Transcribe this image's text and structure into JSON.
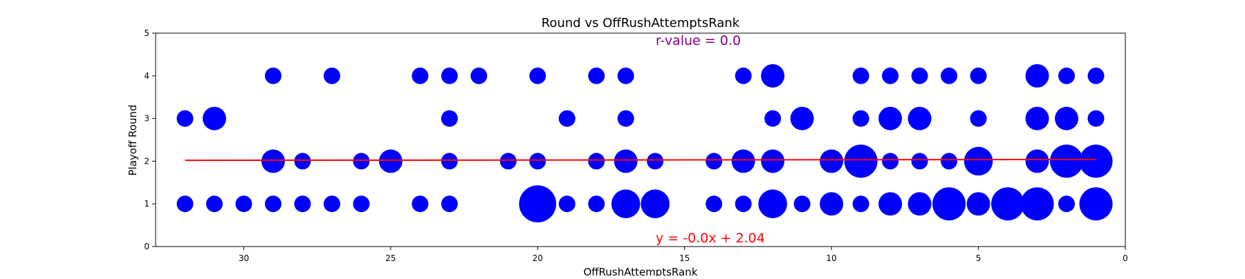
{
  "chart_data": {
    "type": "scatter",
    "title": "Round vs OffRushAttemptsRank",
    "xlabel": "OffRushAttemptsRank",
    "ylabel": "Playoff Round",
    "xlim": [
      33,
      0
    ],
    "ylim": [
      0,
      5
    ],
    "x_ticks": [
      30,
      25,
      20,
      15,
      10,
      5,
      0
    ],
    "y_ticks": [
      0,
      1,
      2,
      3,
      4,
      5
    ],
    "x_inverted": true,
    "grid": false,
    "point_color": "#0000ff",
    "point_size_encoding": "bubble size proportional to count of observations at (x, y)",
    "points": [
      {
        "x": 32,
        "y": 1,
        "size": 1
      },
      {
        "x": 31,
        "y": 1,
        "size": 1
      },
      {
        "x": 30,
        "y": 1,
        "size": 1
      },
      {
        "x": 29,
        "y": 1,
        "size": 1
      },
      {
        "x": 28,
        "y": 1,
        "size": 1
      },
      {
        "x": 27,
        "y": 1,
        "size": 1
      },
      {
        "x": 26,
        "y": 1,
        "size": 1
      },
      {
        "x": 24,
        "y": 1,
        "size": 1
      },
      {
        "x": 23,
        "y": 1,
        "size": 1
      },
      {
        "x": 20,
        "y": 1,
        "size": 5
      },
      {
        "x": 19,
        "y": 1,
        "size": 1
      },
      {
        "x": 18,
        "y": 1,
        "size": 1
      },
      {
        "x": 17,
        "y": 1,
        "size": 3
      },
      {
        "x": 16,
        "y": 1,
        "size": 3
      },
      {
        "x": 14,
        "y": 1,
        "size": 1
      },
      {
        "x": 13,
        "y": 1,
        "size": 1
      },
      {
        "x": 12,
        "y": 1,
        "size": 3
      },
      {
        "x": 11,
        "y": 1,
        "size": 1
      },
      {
        "x": 10,
        "y": 1,
        "size": 2
      },
      {
        "x": 9,
        "y": 1,
        "size": 1
      },
      {
        "x": 8,
        "y": 1,
        "size": 2
      },
      {
        "x": 7,
        "y": 1,
        "size": 2
      },
      {
        "x": 6,
        "y": 1,
        "size": 4
      },
      {
        "x": 5,
        "y": 1,
        "size": 2
      },
      {
        "x": 4,
        "y": 1,
        "size": 4
      },
      {
        "x": 3,
        "y": 1,
        "size": 4
      },
      {
        "x": 2,
        "y": 1,
        "size": 1
      },
      {
        "x": 1,
        "y": 1,
        "size": 4
      },
      {
        "x": 29,
        "y": 2,
        "size": 2
      },
      {
        "x": 28,
        "y": 2,
        "size": 1
      },
      {
        "x": 26,
        "y": 2,
        "size": 1
      },
      {
        "x": 25,
        "y": 2,
        "size": 2
      },
      {
        "x": 23,
        "y": 2,
        "size": 1
      },
      {
        "x": 21,
        "y": 2,
        "size": 1
      },
      {
        "x": 20,
        "y": 2,
        "size": 1
      },
      {
        "x": 18,
        "y": 2,
        "size": 1
      },
      {
        "x": 17,
        "y": 2,
        "size": 2
      },
      {
        "x": 16,
        "y": 2,
        "size": 1
      },
      {
        "x": 14,
        "y": 2,
        "size": 1
      },
      {
        "x": 13,
        "y": 2,
        "size": 2
      },
      {
        "x": 12,
        "y": 2,
        "size": 2
      },
      {
        "x": 10,
        "y": 2,
        "size": 2
      },
      {
        "x": 9,
        "y": 2,
        "size": 4
      },
      {
        "x": 8,
        "y": 2,
        "size": 1
      },
      {
        "x": 7,
        "y": 2,
        "size": 1
      },
      {
        "x": 6,
        "y": 2,
        "size": 1
      },
      {
        "x": 5,
        "y": 2,
        "size": 3
      },
      {
        "x": 3,
        "y": 2,
        "size": 2
      },
      {
        "x": 2,
        "y": 2,
        "size": 4
      },
      {
        "x": 1,
        "y": 2,
        "size": 4
      },
      {
        "x": 32,
        "y": 3,
        "size": 1
      },
      {
        "x": 31,
        "y": 3,
        "size": 2
      },
      {
        "x": 23,
        "y": 3,
        "size": 1
      },
      {
        "x": 19,
        "y": 3,
        "size": 1
      },
      {
        "x": 17,
        "y": 3,
        "size": 1
      },
      {
        "x": 12,
        "y": 3,
        "size": 1
      },
      {
        "x": 11,
        "y": 3,
        "size": 2
      },
      {
        "x": 9,
        "y": 3,
        "size": 1
      },
      {
        "x": 8,
        "y": 3,
        "size": 2
      },
      {
        "x": 7,
        "y": 3,
        "size": 2
      },
      {
        "x": 5,
        "y": 3,
        "size": 1
      },
      {
        "x": 3,
        "y": 3,
        "size": 2
      },
      {
        "x": 2,
        "y": 3,
        "size": 2
      },
      {
        "x": 1,
        "y": 3,
        "size": 1
      },
      {
        "x": 29,
        "y": 4,
        "size": 1
      },
      {
        "x": 27,
        "y": 4,
        "size": 1
      },
      {
        "x": 24,
        "y": 4,
        "size": 1
      },
      {
        "x": 23,
        "y": 4,
        "size": 1
      },
      {
        "x": 22,
        "y": 4,
        "size": 1
      },
      {
        "x": 20,
        "y": 4,
        "size": 1
      },
      {
        "x": 18,
        "y": 4,
        "size": 1
      },
      {
        "x": 17,
        "y": 4,
        "size": 1
      },
      {
        "x": 13,
        "y": 4,
        "size": 1
      },
      {
        "x": 12,
        "y": 4,
        "size": 2
      },
      {
        "x": 9,
        "y": 4,
        "size": 1
      },
      {
        "x": 8,
        "y": 4,
        "size": 1
      },
      {
        "x": 7,
        "y": 4,
        "size": 1
      },
      {
        "x": 6,
        "y": 4,
        "size": 1
      },
      {
        "x": 5,
        "y": 4,
        "size": 1
      },
      {
        "x": 3,
        "y": 4,
        "size": 2
      },
      {
        "x": 2,
        "y": 4,
        "size": 1
      },
      {
        "x": 1,
        "y": 4,
        "size": 1
      }
    ],
    "regression_line": {
      "color": "#ff0000",
      "x_start": 32,
      "x_end": 1,
      "y_start": 2.02,
      "y_end": 2.04,
      "equation_label": "y = -0.0x + 2.04",
      "equation_label_color": "#ff0000"
    },
    "r_value_label": "r-value = 0.0",
    "r_value_label_color": "#800080"
  }
}
